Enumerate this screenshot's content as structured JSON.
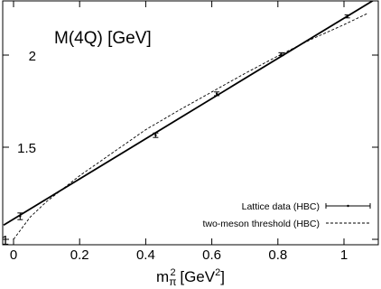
{
  "chart_data": {
    "type": "line",
    "title": "M(4Q) [GeV]",
    "xlabel": {
      "base": "m",
      "sub": "π",
      "sup": "2",
      "unit_open": " [GeV",
      "unit_sup": "2",
      "unit_close": "]"
    },
    "ylabel": "",
    "xlim": [
      0,
      1.07
    ],
    "ylim": [
      1,
      2.27
    ],
    "x_ticks": [
      {
        "value": 0,
        "label": "0"
      },
      {
        "value": 0.2,
        "label": "0.2"
      },
      {
        "value": 0.4,
        "label": "0.4"
      },
      {
        "value": 0.6,
        "label": "0.6"
      },
      {
        "value": 0.8,
        "label": "0.8"
      },
      {
        "value": 1.0,
        "label": "1"
      }
    ],
    "y_ticks": [
      {
        "value": 1,
        "label": "1"
      },
      {
        "value": 1.5,
        "label": "1.5"
      },
      {
        "value": 2,
        "label": "2"
      }
    ],
    "series": [
      {
        "name": "Lattice data (HBC)",
        "style": "errorbar",
        "points": [
          {
            "x": 0.02,
            "y": 1.125,
            "err": 0.018
          },
          {
            "x": 0.43,
            "y": 1.565,
            "err": 0.012
          },
          {
            "x": 0.615,
            "y": 1.79,
            "err": 0.01
          },
          {
            "x": 0.81,
            "y": 2.005,
            "err": 0.008
          },
          {
            "x": 1.01,
            "y": 2.21,
            "err": 0.008
          }
        ]
      },
      {
        "name": "",
        "style": "solid-fit",
        "line": {
          "intercept": 1.11,
          "slope": 1.09
        }
      },
      {
        "name": "two-meson threshold (HBC)",
        "style": "dashed",
        "x": [
          0.0,
          0.05,
          0.1,
          0.15,
          0.2,
          0.3,
          0.4,
          0.5,
          0.6,
          0.7,
          0.8,
          0.9,
          1.0,
          1.07
        ],
        "y": [
          1.0,
          1.12,
          1.205,
          1.275,
          1.345,
          1.47,
          1.595,
          1.7,
          1.8,
          1.9,
          1.995,
          2.085,
          2.165,
          2.225
        ]
      }
    ],
    "legend": {
      "placement": "bottom-right",
      "entries": [
        {
          "label": "Lattice data (HBC)",
          "style": "errorbar"
        },
        {
          "label": "two-meson threshold (HBC)",
          "style": "dashed"
        }
      ]
    },
    "grid": false,
    "colors": {
      "line": "#000000",
      "background": "#ffffff"
    }
  }
}
